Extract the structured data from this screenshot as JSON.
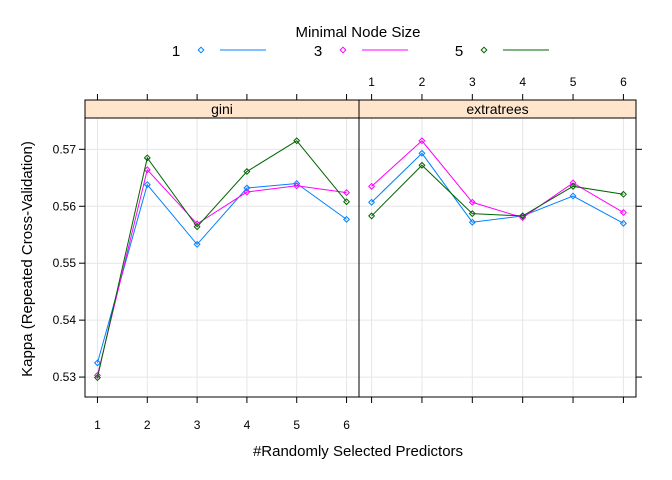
{
  "chart_data": {
    "type": "line",
    "legend": {
      "title": "Minimal Node Size",
      "position": "top"
    },
    "xlabel": "#Randomly Selected Predictors",
    "ylabel": "Kappa (Repeated Cross-Validation)",
    "ylim": [
      0.5265,
      0.5755
    ],
    "xlim": [
      0.75,
      6.25
    ],
    "x": [
      1,
      2,
      3,
      4,
      5,
      6
    ],
    "x_ticks": [
      "1",
      "2",
      "3",
      "4",
      "5",
      "6"
    ],
    "y_ticks": [
      0.53,
      0.54,
      0.55,
      0.56,
      0.57
    ],
    "y_tick_labels": [
      "0.53",
      "0.54",
      "0.55",
      "0.56",
      "0.57"
    ],
    "grid": true,
    "panels": [
      {
        "label": "gini",
        "series": [
          {
            "name": "1",
            "color": "#0080ff",
            "values": [
              0.5325,
              0.5638,
              0.5533,
              0.5632,
              0.564,
              0.5577
            ]
          },
          {
            "name": "3",
            "color": "#ff00ff",
            "values": [
              0.5303,
              0.5664,
              0.5569,
              0.5625,
              0.5636,
              0.5624
            ]
          },
          {
            "name": "5",
            "color": "#006400",
            "values": [
              0.5299,
              0.5685,
              0.5564,
              0.5661,
              0.5715,
              0.5608
            ]
          }
        ]
      },
      {
        "label": "extratrees",
        "series": [
          {
            "name": "1",
            "color": "#0080ff",
            "values": [
              0.5607,
              0.5693,
              0.5572,
              0.5583,
              0.5618,
              0.557
            ]
          },
          {
            "name": "3",
            "color": "#ff00ff",
            "values": [
              0.5635,
              0.5715,
              0.5607,
              0.558,
              0.5641,
              0.5589
            ]
          },
          {
            "name": "5",
            "color": "#006400",
            "values": [
              0.5583,
              0.5672,
              0.5587,
              0.5583,
              0.5635,
              0.5621
            ]
          }
        ]
      }
    ],
    "strip_color": "#ffe5cc"
  }
}
